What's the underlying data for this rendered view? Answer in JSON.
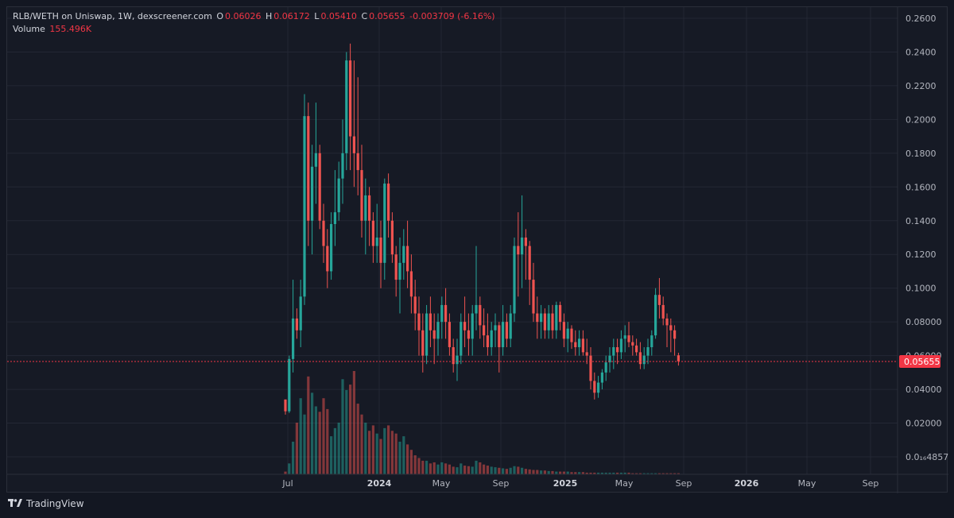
{
  "legend": {
    "pair": "RLB/WETH on Uniswap, 1W, dexscreener.com",
    "o_label": "O",
    "o_value": "0.06026",
    "h_label": "H",
    "h_value": "0.06172",
    "l_label": "L",
    "l_value": "0.05410",
    "c_label": "C",
    "c_value": "0.05655",
    "change": "-0.003709 (-6.16%)",
    "volume_label": "Volume",
    "volume_value": "155.496K"
  },
  "footer": {
    "brand": "TradingView"
  },
  "colors": {
    "up": "#26a69a",
    "down": "#ef5350",
    "background": "#161a25",
    "grid": "#232734",
    "price_line": "#f23645"
  },
  "chart_data": {
    "type": "candlestick",
    "interval": "1W",
    "y_axis": {
      "ticks": [
        "0.2600",
        "0.2400",
        "0.2200",
        "0.2000",
        "0.1800",
        "0.1600",
        "0.1400",
        "0.1200",
        "0.1000",
        "0.08000",
        "0.06000",
        "0.04000",
        "0.02000",
        "0.0₁₆4857"
      ],
      "min": 0.0,
      "max": 0.26,
      "scale": "linear"
    },
    "x_axis": {
      "ticks": [
        "Jul",
        "2024",
        "May",
        "Sep",
        "2025",
        "May",
        "Sep",
        "2026",
        "May",
        "Sep"
      ],
      "bold_ticks": [
        "2024",
        "2025",
        "2026"
      ]
    },
    "last_price": {
      "value": 0.05655,
      "label": "0.05655"
    },
    "grid": true,
    "candles": [
      [
        0.034,
        0.034,
        0.025,
        0.027
      ],
      [
        0.027,
        0.06,
        0.026,
        0.058
      ],
      [
        0.058,
        0.105,
        0.05,
        0.082
      ],
      [
        0.082,
        0.088,
        0.07,
        0.075
      ],
      [
        0.075,
        0.105,
        0.065,
        0.095
      ],
      [
        0.095,
        0.215,
        0.09,
        0.202
      ],
      [
        0.202,
        0.21,
        0.125,
        0.14
      ],
      [
        0.14,
        0.185,
        0.12,
        0.172
      ],
      [
        0.172,
        0.21,
        0.15,
        0.18
      ],
      [
        0.18,
        0.185,
        0.135,
        0.14
      ],
      [
        0.14,
        0.15,
        0.115,
        0.125
      ],
      [
        0.125,
        0.135,
        0.1,
        0.11
      ],
      [
        0.11,
        0.145,
        0.105,
        0.138
      ],
      [
        0.138,
        0.17,
        0.125,
        0.145
      ],
      [
        0.145,
        0.175,
        0.14,
        0.165
      ],
      [
        0.165,
        0.2,
        0.15,
        0.18
      ],
      [
        0.18,
        0.24,
        0.17,
        0.235
      ],
      [
        0.235,
        0.245,
        0.17,
        0.19
      ],
      [
        0.19,
        0.235,
        0.16,
        0.18
      ],
      [
        0.18,
        0.225,
        0.155,
        0.17
      ],
      [
        0.17,
        0.185,
        0.13,
        0.14
      ],
      [
        0.14,
        0.165,
        0.12,
        0.155
      ],
      [
        0.155,
        0.16,
        0.125,
        0.14
      ],
      [
        0.14,
        0.145,
        0.115,
        0.125
      ],
      [
        0.125,
        0.15,
        0.115,
        0.13
      ],
      [
        0.13,
        0.14,
        0.1,
        0.115
      ],
      [
        0.115,
        0.165,
        0.105,
        0.162
      ],
      [
        0.162,
        0.168,
        0.13,
        0.14
      ],
      [
        0.14,
        0.145,
        0.115,
        0.12
      ],
      [
        0.12,
        0.125,
        0.095,
        0.105
      ],
      [
        0.105,
        0.13,
        0.085,
        0.115
      ],
      [
        0.115,
        0.135,
        0.105,
        0.125
      ],
      [
        0.125,
        0.14,
        0.1,
        0.11
      ],
      [
        0.11,
        0.12,
        0.085,
        0.095
      ],
      [
        0.095,
        0.105,
        0.075,
        0.085
      ],
      [
        0.085,
        0.095,
        0.06,
        0.075
      ],
      [
        0.075,
        0.085,
        0.05,
        0.06
      ],
      [
        0.06,
        0.09,
        0.055,
        0.085
      ],
      [
        0.085,
        0.095,
        0.065,
        0.075
      ],
      [
        0.075,
        0.085,
        0.055,
        0.07
      ],
      [
        0.07,
        0.085,
        0.06,
        0.08
      ],
      [
        0.08,
        0.095,
        0.07,
        0.09
      ],
      [
        0.09,
        0.1,
        0.07,
        0.08
      ],
      [
        0.08,
        0.085,
        0.06,
        0.065
      ],
      [
        0.065,
        0.07,
        0.05,
        0.055
      ],
      [
        0.055,
        0.07,
        0.045,
        0.06
      ],
      [
        0.06,
        0.085,
        0.055,
        0.08
      ],
      [
        0.08,
        0.095,
        0.065,
        0.075
      ],
      [
        0.075,
        0.085,
        0.06,
        0.07
      ],
      [
        0.07,
        0.09,
        0.06,
        0.085
      ],
      [
        0.085,
        0.125,
        0.075,
        0.09
      ],
      [
        0.09,
        0.095,
        0.07,
        0.078
      ],
      [
        0.078,
        0.088,
        0.065,
        0.072
      ],
      [
        0.072,
        0.085,
        0.06,
        0.065
      ],
      [
        0.065,
        0.08,
        0.06,
        0.075
      ],
      [
        0.075,
        0.085,
        0.065,
        0.078
      ],
      [
        0.078,
        0.08,
        0.05,
        0.065
      ],
      [
        0.065,
        0.09,
        0.06,
        0.08
      ],
      [
        0.08,
        0.085,
        0.065,
        0.07
      ],
      [
        0.07,
        0.09,
        0.065,
        0.085
      ],
      [
        0.085,
        0.13,
        0.08,
        0.125
      ],
      [
        0.125,
        0.145,
        0.095,
        0.12
      ],
      [
        0.12,
        0.155,
        0.1,
        0.13
      ],
      [
        0.13,
        0.135,
        0.105,
        0.125
      ],
      [
        0.125,
        0.128,
        0.09,
        0.105
      ],
      [
        0.105,
        0.115,
        0.08,
        0.085
      ],
      [
        0.085,
        0.095,
        0.07,
        0.08
      ],
      [
        0.08,
        0.09,
        0.07,
        0.085
      ],
      [
        0.085,
        0.088,
        0.07,
        0.075
      ],
      [
        0.075,
        0.09,
        0.07,
        0.085
      ],
      [
        0.085,
        0.09,
        0.07,
        0.075
      ],
      [
        0.075,
        0.092,
        0.07,
        0.09
      ],
      [
        0.09,
        0.092,
        0.075,
        0.08
      ],
      [
        0.08,
        0.085,
        0.065,
        0.07
      ],
      [
        0.07,
        0.08,
        0.062,
        0.076
      ],
      [
        0.076,
        0.078,
        0.064,
        0.068
      ],
      [
        0.068,
        0.075,
        0.06,
        0.065
      ],
      [
        0.065,
        0.075,
        0.06,
        0.07
      ],
      [
        0.07,
        0.075,
        0.06,
        0.062
      ],
      [
        0.062,
        0.07,
        0.055,
        0.06
      ],
      [
        0.06,
        0.065,
        0.04,
        0.045
      ],
      [
        0.045,
        0.05,
        0.034,
        0.038
      ],
      [
        0.038,
        0.048,
        0.035,
        0.044
      ],
      [
        0.044,
        0.052,
        0.04,
        0.05
      ],
      [
        0.05,
        0.06,
        0.045,
        0.056
      ],
      [
        0.056,
        0.065,
        0.05,
        0.06
      ],
      [
        0.06,
        0.07,
        0.052,
        0.065
      ],
      [
        0.065,
        0.07,
        0.055,
        0.062
      ],
      [
        0.062,
        0.075,
        0.058,
        0.07
      ],
      [
        0.07,
        0.078,
        0.062,
        0.072
      ],
      [
        0.072,
        0.08,
        0.065,
        0.068
      ],
      [
        0.068,
        0.072,
        0.06,
        0.066
      ],
      [
        0.066,
        0.07,
        0.06,
        0.062
      ],
      [
        0.062,
        0.068,
        0.052,
        0.055
      ],
      [
        0.055,
        0.065,
        0.052,
        0.06
      ],
      [
        0.06,
        0.07,
        0.055,
        0.065
      ],
      [
        0.065,
        0.075,
        0.06,
        0.072
      ],
      [
        0.072,
        0.1,
        0.07,
        0.096
      ],
      [
        0.096,
        0.106,
        0.082,
        0.09
      ],
      [
        0.09,
        0.095,
        0.078,
        0.082
      ],
      [
        0.082,
        0.085,
        0.065,
        0.078
      ],
      [
        0.078,
        0.082,
        0.062,
        0.075
      ],
      [
        0.075,
        0.078,
        0.06,
        0.07
      ],
      [
        0.0602,
        0.0617,
        0.0541,
        0.0566
      ]
    ],
    "volume_label": "Volume",
    "volumes": [
      5,
      20,
      60,
      95,
      140,
      110,
      180,
      150,
      125,
      115,
      140,
      120,
      70,
      85,
      95,
      175,
      155,
      165,
      190,
      130,
      110,
      95,
      80,
      90,
      75,
      65,
      85,
      90,
      80,
      75,
      60,
      70,
      55,
      45,
      35,
      30,
      25,
      25,
      20,
      22,
      18,
      22,
      20,
      18,
      14,
      13,
      20,
      16,
      15,
      14,
      25,
      22,
      18,
      16,
      14,
      13,
      12,
      11,
      10,
      12,
      15,
      14,
      12,
      10,
      9,
      8,
      8,
      7,
      7,
      6,
      6,
      5,
      5,
      5,
      5,
      4,
      4,
      4,
      4,
      3,
      3,
      3,
      3,
      3,
      3,
      3,
      3,
      3,
      3,
      3,
      3,
      2,
      2,
      2,
      2,
      2,
      2,
      2,
      2,
      2,
      2,
      2,
      2,
      2
    ]
  }
}
